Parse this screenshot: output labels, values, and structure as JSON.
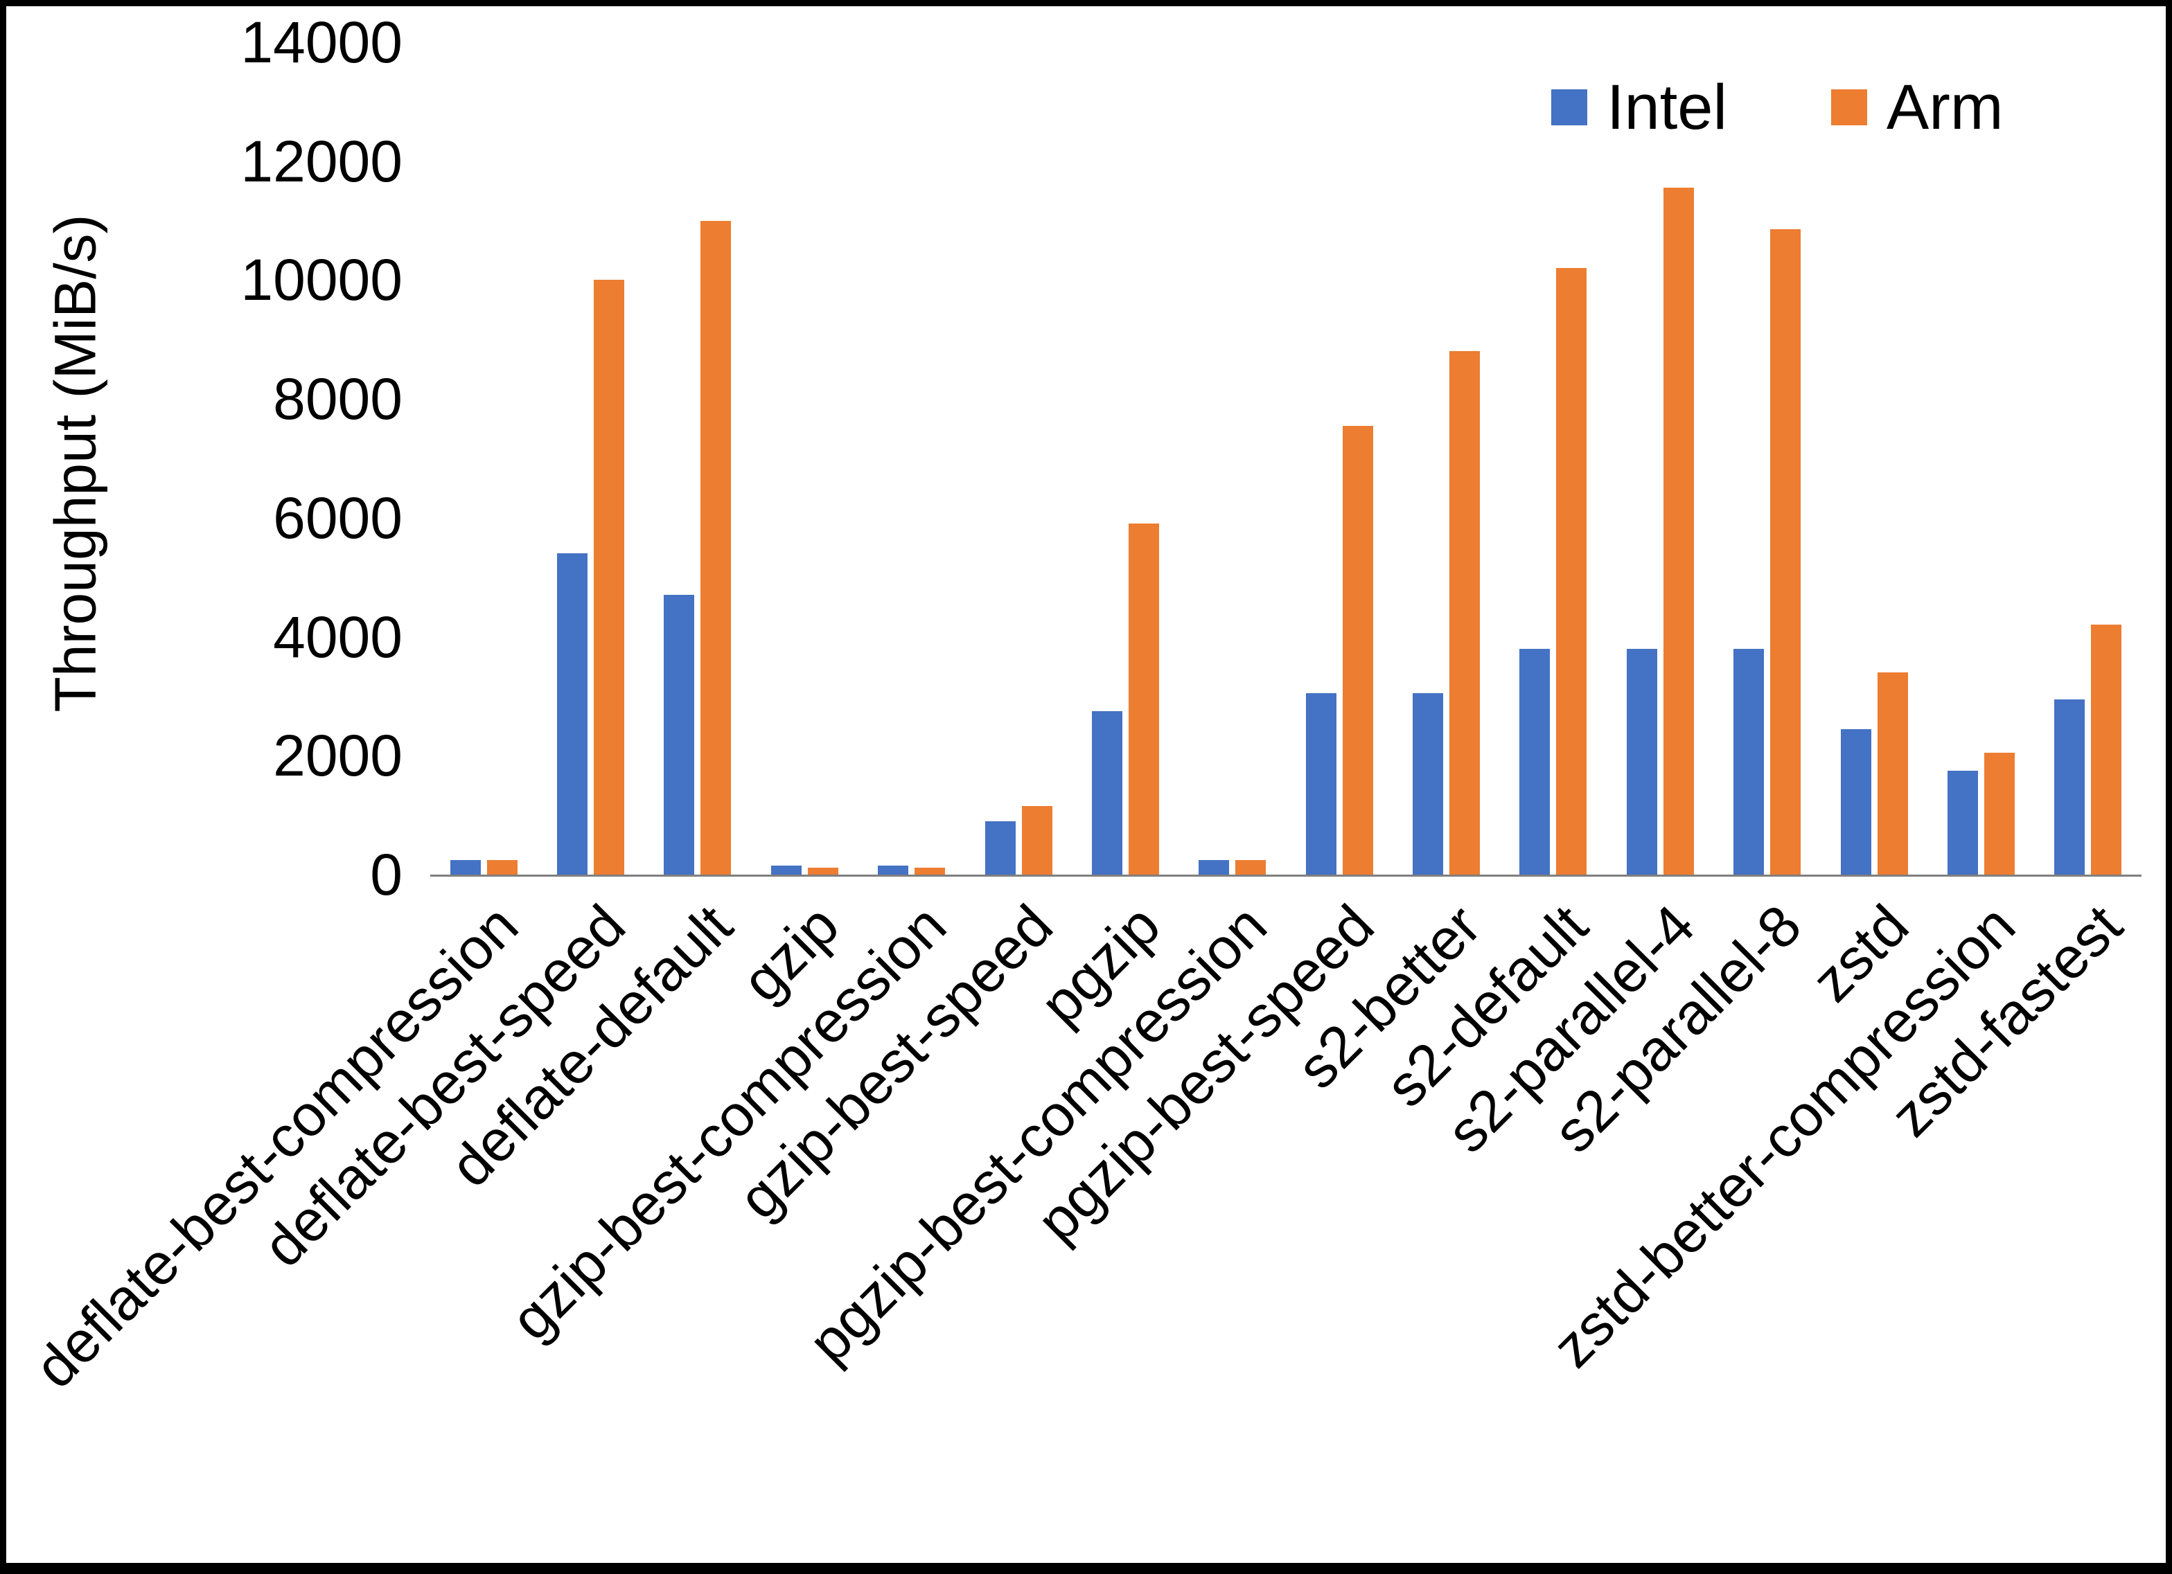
{
  "chart_data": {
    "type": "bar",
    "title": "",
    "xlabel": "",
    "ylabel": "Throughput (MiB/s)",
    "ylim": [
      0,
      14000
    ],
    "ytick_step": 2000,
    "grid": false,
    "legend_position": "top-right",
    "categories": [
      "deflate-best-compression",
      "deflate-best-speed",
      "deflate-default",
      "gzip",
      "gzip-best-compression",
      "gzip-best-speed",
      "pgzip",
      "pgzip-best-compression",
      "pgzip-best-speed",
      "s2-better",
      "s2-default",
      "s2-parallel-4",
      "s2-parallel-8",
      "zstd",
      "zstd-better-compression",
      "zstd-fastest"
    ],
    "series": [
      {
        "name": "Intel",
        "color": "#4472C4",
        "values": [
          250,
          5400,
          4700,
          150,
          150,
          900,
          2750,
          250,
          3050,
          3050,
          3800,
          3800,
          3800,
          2450,
          1750,
          2950
        ]
      },
      {
        "name": "Arm",
        "color": "#ED7D31",
        "values": [
          250,
          10000,
          11000,
          120,
          120,
          1150,
          5900,
          250,
          7550,
          8800,
          10200,
          11550,
          10850,
          3400,
          2050,
          4200
        ]
      }
    ]
  }
}
